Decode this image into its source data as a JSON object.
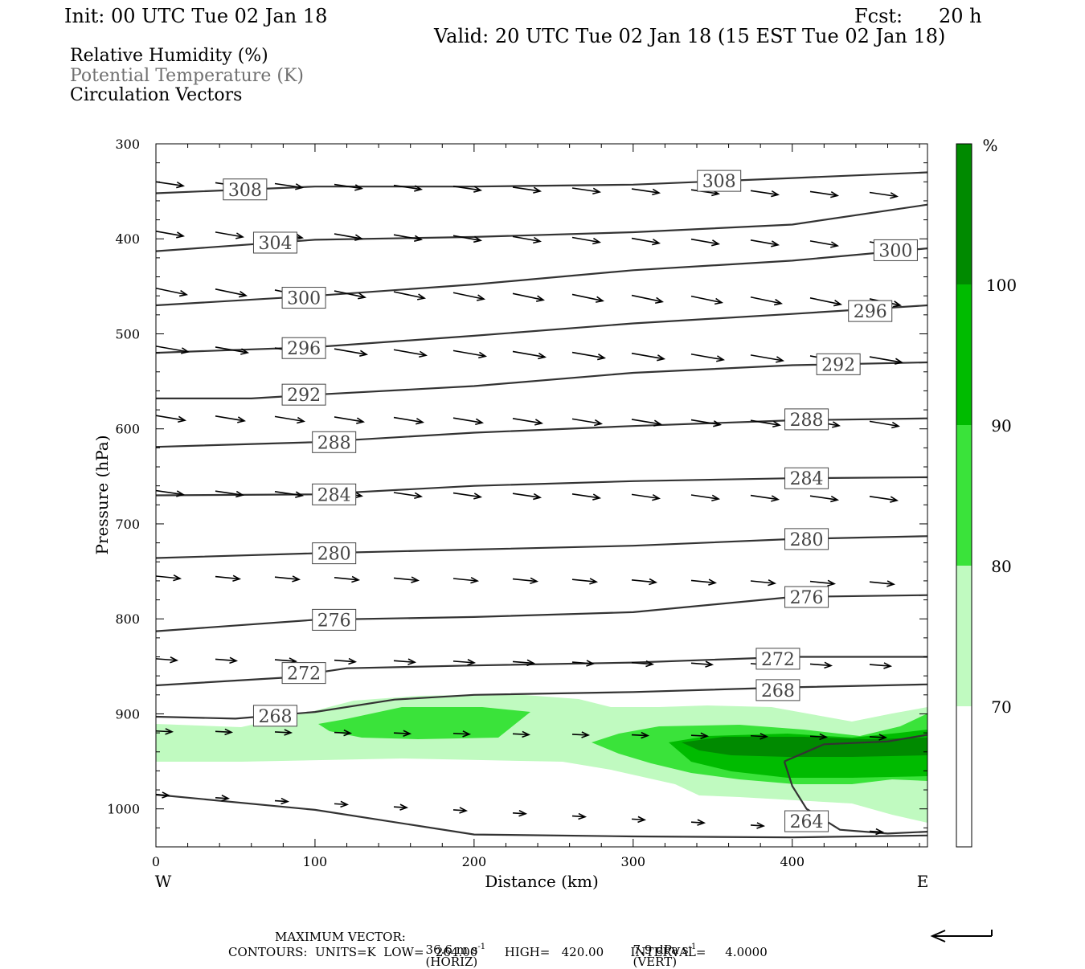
{
  "header": {
    "init": "Init: 00 UTC Tue 02 Jan 18",
    "fcst_label": "Fcst:",
    "fcst_value": "20 h",
    "valid": "Valid: 20 UTC Tue 02 Jan 18 (15 EST Tue 02 Jan 18)"
  },
  "titles": {
    "rh": "Relative Humidity (%)",
    "theta": "Potential Temperature (K)",
    "vectors": "Circulation Vectors"
  },
  "footer": {
    "max_vector_label": "MAXIMUM VECTOR:",
    "horiz_value": "36.6 m s",
    "horiz_unit": "(HORIZ)",
    "vert_value": "7.9 dPa s",
    "vert_unit": "(VERT)",
    "exponent": "-1",
    "contours_line": "CONTOURS:  UNITS=K  LOW=   264.00       HIGH=   420.00       INTERVAL=     4.0000"
  },
  "colors": {
    "rh70": "#c0fac0",
    "rh80": "#3ae33a",
    "rh90": "#00bb00",
    "rh100": "#008a00",
    "contour": "#333333",
    "axis": "#000000"
  },
  "chart_data": {
    "type": "cross-section",
    "xlabel": "Distance (km)",
    "ylabel": "Pressure (hPa)",
    "xlim": [
      0,
      485
    ],
    "ylim": [
      1040,
      300
    ],
    "xticks": [
      0,
      100,
      200,
      300,
      400
    ],
    "yticks": [
      300,
      400,
      500,
      600,
      700,
      800,
      900,
      1000
    ],
    "west_label": "W",
    "east_label": "E",
    "colorbar": {
      "unit": "%",
      "levels": [
        "70",
        "80",
        "90",
        "100"
      ],
      "colors": [
        "#c0fac0",
        "#3ae33a",
        "#00bb00",
        "#008a00"
      ]
    },
    "theta_contours": [
      {
        "value": 308,
        "label": "308",
        "points": [
          [
            0,
            352
          ],
          [
            100,
            345
          ],
          [
            200,
            345
          ],
          [
            300,
            343
          ],
          [
            400,
            336
          ],
          [
            485,
            330
          ]
        ],
        "labels_at": [
          [
            56,
            348
          ],
          [
            354,
            339
          ]
        ]
      },
      {
        "value": 304,
        "label": "304",
        "points": [
          [
            0,
            413
          ],
          [
            100,
            401
          ],
          [
            200,
            398
          ],
          [
            300,
            393
          ],
          [
            400,
            385
          ],
          [
            485,
            364
          ]
        ],
        "labels_at": [
          [
            75,
            404
          ]
        ]
      },
      {
        "value": 300,
        "label": "300",
        "points": [
          [
            0,
            470
          ],
          [
            100,
            460
          ],
          [
            200,
            448
          ],
          [
            300,
            433
          ],
          [
            400,
            423
          ],
          [
            485,
            410
          ]
        ],
        "labels_at": [
          [
            93,
            462
          ],
          [
            465,
            412
          ]
        ]
      },
      {
        "value": 296,
        "label": "296",
        "points": [
          [
            0,
            520
          ],
          [
            100,
            514
          ],
          [
            200,
            502
          ],
          [
            300,
            489
          ],
          [
            400,
            479
          ],
          [
            485,
            470
          ]
        ],
        "labels_at": [
          [
            93,
            515
          ],
          [
            449,
            476
          ]
        ]
      },
      {
        "value": 292,
        "label": "292",
        "points": [
          [
            0,
            568
          ],
          [
            60,
            568
          ],
          [
            100,
            564
          ],
          [
            200,
            555
          ],
          [
            300,
            541
          ],
          [
            400,
            533
          ],
          [
            485,
            530
          ]
        ],
        "labels_at": [
          [
            93,
            564
          ],
          [
            429,
            532
          ]
        ]
      },
      {
        "value": 288,
        "label": "288",
        "points": [
          [
            0,
            619
          ],
          [
            100,
            614
          ],
          [
            200,
            604
          ],
          [
            300,
            597
          ],
          [
            400,
            591
          ],
          [
            485,
            589
          ]
        ],
        "labels_at": [
          [
            112,
            614
          ],
          [
            409,
            590
          ]
        ]
      },
      {
        "value": 284,
        "label": "284",
        "points": [
          [
            0,
            670
          ],
          [
            100,
            669
          ],
          [
            200,
            660
          ],
          [
            300,
            655
          ],
          [
            400,
            652
          ],
          [
            485,
            651
          ]
        ],
        "labels_at": [
          [
            112,
            669
          ],
          [
            409,
            652
          ]
        ]
      },
      {
        "value": 280,
        "label": "280",
        "points": [
          [
            0,
            736
          ],
          [
            100,
            731
          ],
          [
            200,
            727
          ],
          [
            300,
            723
          ],
          [
            400,
            716
          ],
          [
            485,
            713
          ]
        ],
        "labels_at": [
          [
            112,
            731
          ],
          [
            409,
            716
          ]
        ]
      },
      {
        "value": 276,
        "label": "276",
        "points": [
          [
            0,
            813
          ],
          [
            100,
            801
          ],
          [
            200,
            798
          ],
          [
            300,
            793
          ],
          [
            400,
            777
          ],
          [
            485,
            775
          ]
        ],
        "labels_at": [
          [
            112,
            801
          ],
          [
            409,
            777
          ]
        ]
      },
      {
        "value": 272,
        "label": "272",
        "points": [
          [
            0,
            870
          ],
          [
            80,
            862
          ],
          [
            120,
            852
          ],
          [
            200,
            849
          ],
          [
            300,
            846
          ],
          [
            400,
            840
          ],
          [
            485,
            840
          ]
        ],
        "labels_at": [
          [
            93,
            857
          ],
          [
            391,
            842
          ]
        ]
      },
      {
        "value": 268,
        "label": "268",
        "points": [
          [
            0,
            903
          ],
          [
            50,
            905
          ],
          [
            100,
            898
          ],
          [
            150,
            885
          ],
          [
            200,
            880
          ],
          [
            300,
            877
          ],
          [
            400,
            872
          ],
          [
            485,
            869
          ]
        ],
        "labels_at": [
          [
            75,
            902
          ],
          [
            391,
            875
          ]
        ]
      },
      {
        "value": 264,
        "label": "264",
        "points": [
          [
            0,
            985
          ],
          [
            100,
            1001
          ],
          [
            200,
            1027
          ],
          [
            300,
            1029
          ],
          [
            400,
            1030
          ],
          [
            485,
            1028
          ]
        ],
        "labels_at": [
          [
            409,
            1013
          ]
        ]
      },
      {
        "value": 264,
        "label": "",
        "points": [
          [
            395,
            950
          ],
          [
            400,
            976
          ],
          [
            409,
            1000
          ],
          [
            430,
            1022
          ],
          [
            460,
            1026
          ],
          [
            485,
            1024
          ]
        ],
        "labels_at": []
      },
      {
        "value": 264,
        "label": "",
        "points": [
          [
            395,
            950
          ],
          [
            420,
            932
          ],
          [
            460,
            929
          ],
          [
            485,
            922
          ]
        ],
        "labels_at": []
      }
    ]
  }
}
